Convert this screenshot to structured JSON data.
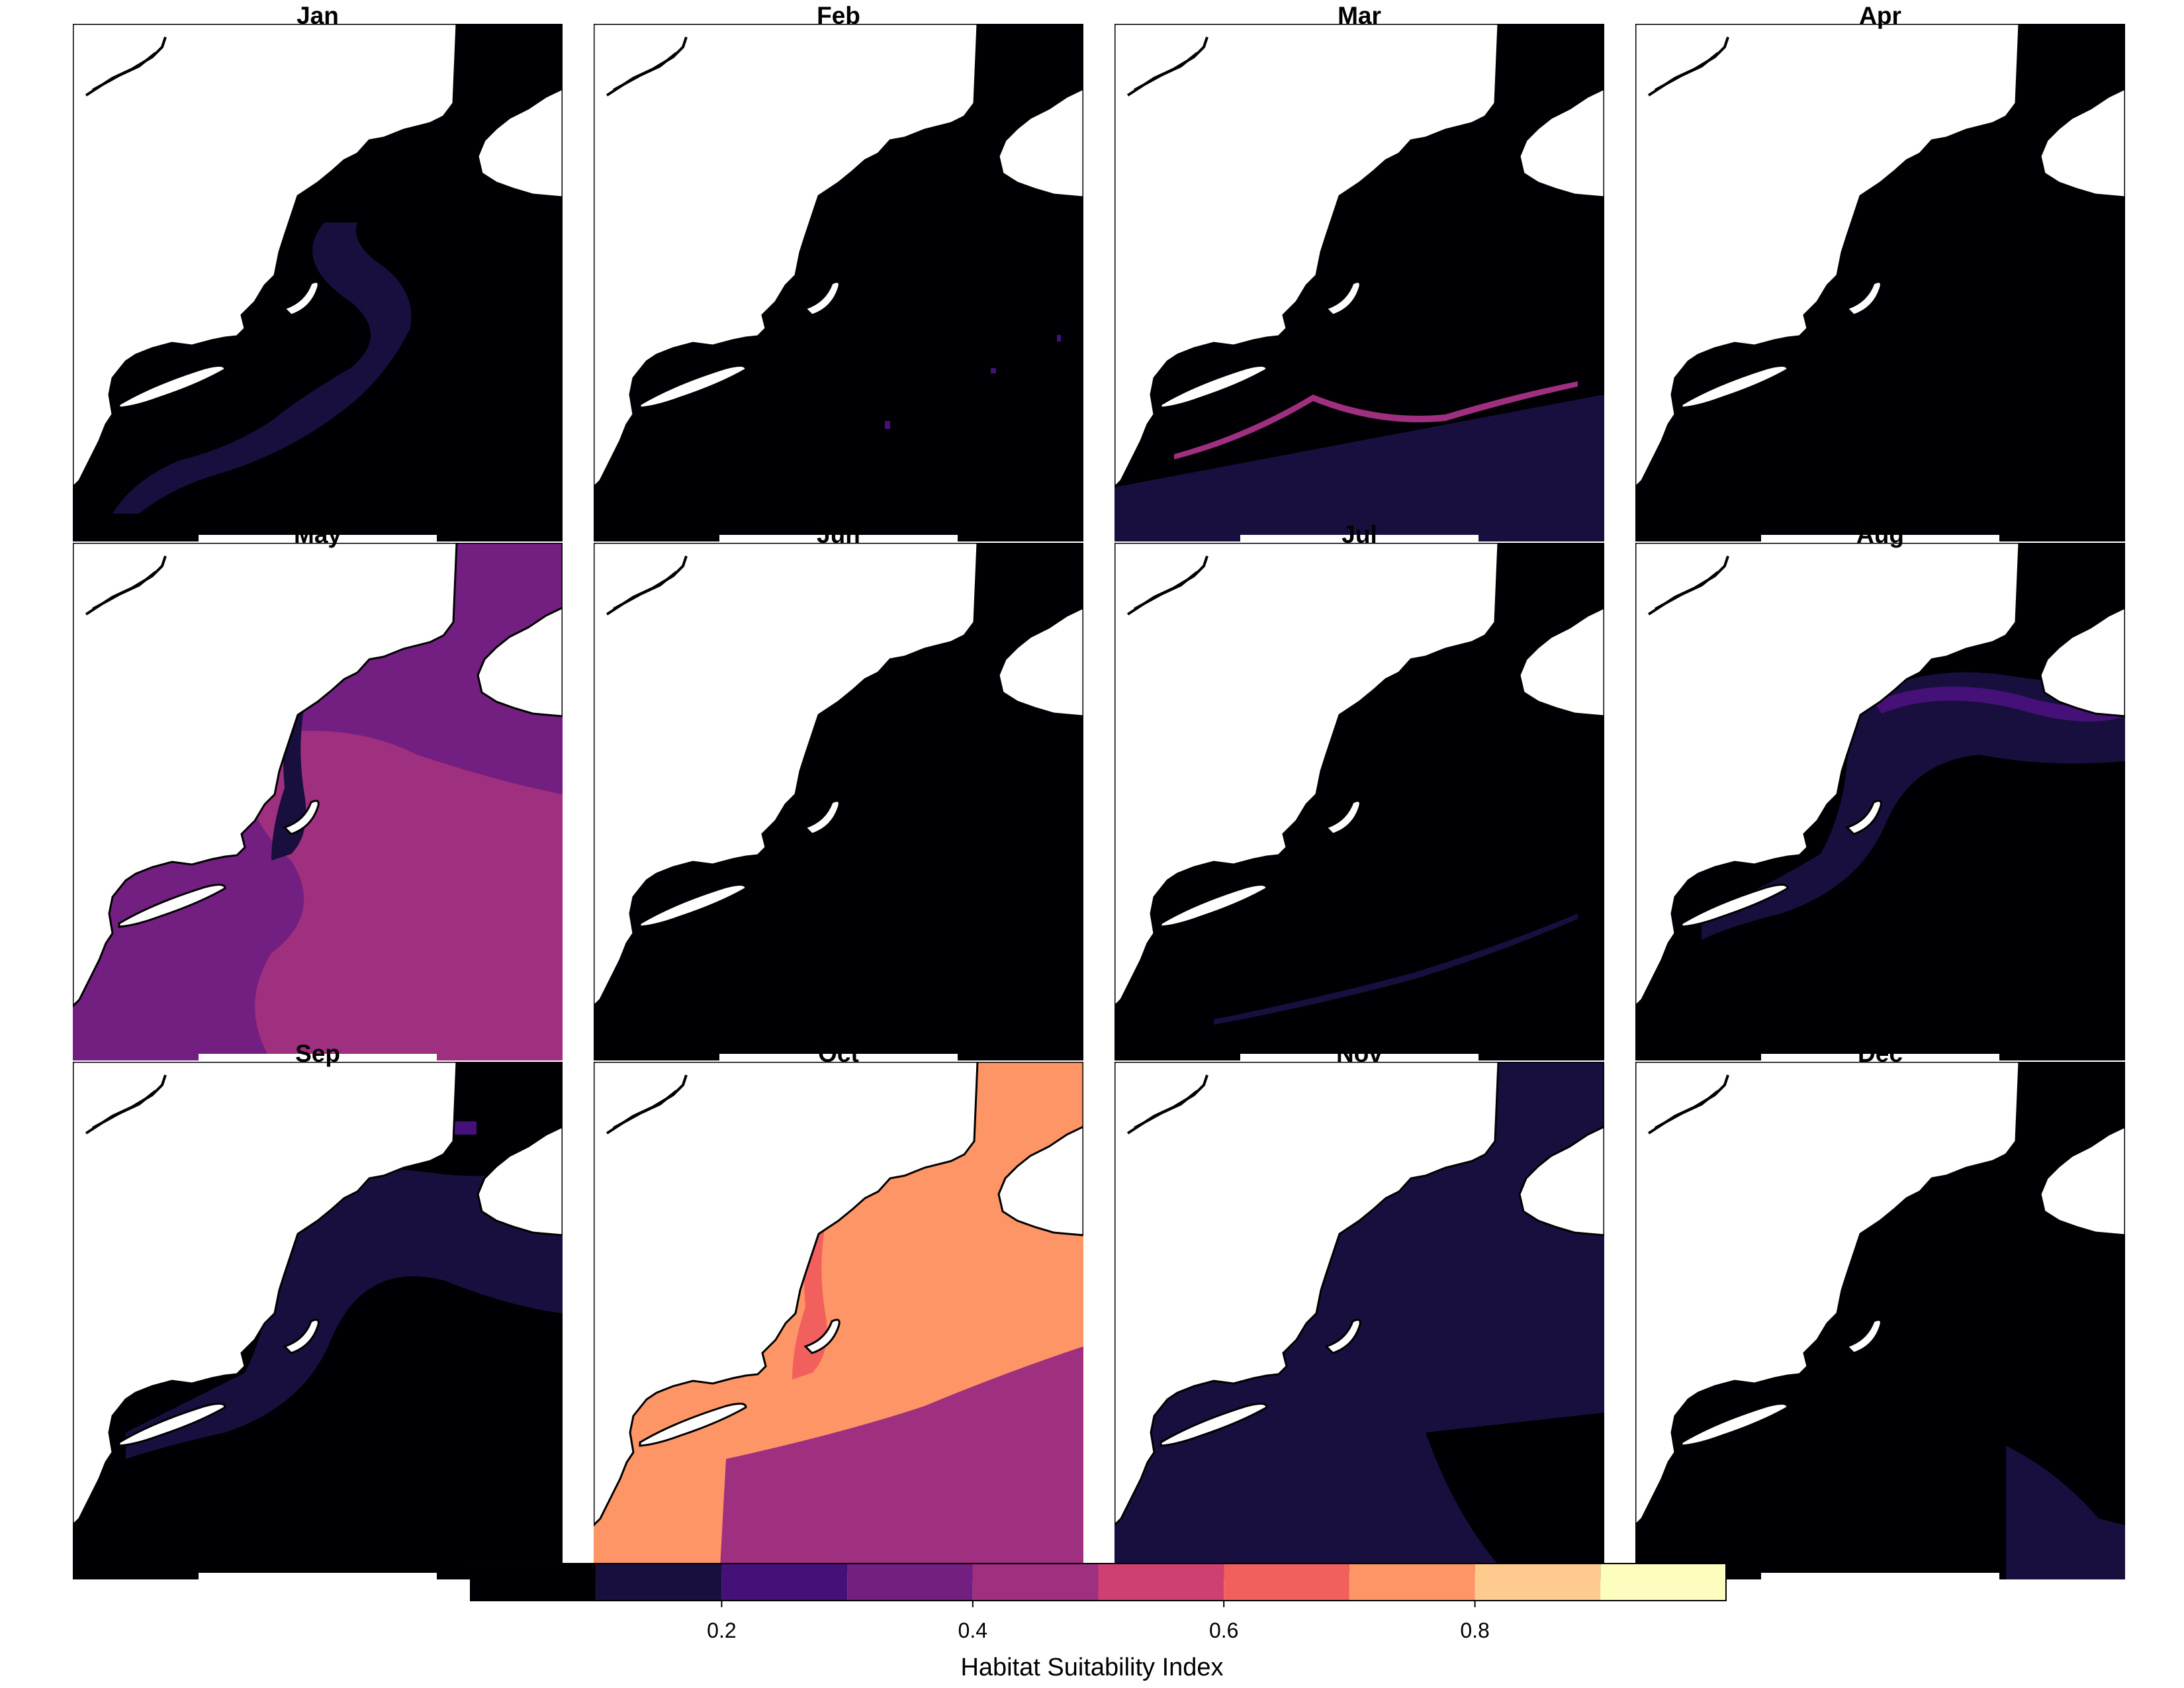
{
  "figure": {
    "legend_title": "Habitat Suitability Index",
    "legend_ticks": [
      "0.2",
      "0.4",
      "0.6",
      "0.8"
    ],
    "legend_tick_values": [
      0.2,
      0.4,
      0.6,
      0.8
    ],
    "legend_range": [
      0.0,
      1.0
    ],
    "color_bins": [
      {
        "min": 0.0,
        "max": 0.1,
        "color": "#000004"
      },
      {
        "min": 0.1,
        "max": 0.2,
        "color": "#180f3e"
      },
      {
        "min": 0.2,
        "max": 0.3,
        "color": "#451077"
      },
      {
        "min": 0.3,
        "max": 0.4,
        "color": "#721f81"
      },
      {
        "min": 0.4,
        "max": 0.5,
        "color": "#9f2f7f"
      },
      {
        "min": 0.5,
        "max": 0.6,
        "color": "#cd4071"
      },
      {
        "min": 0.6,
        "max": 0.7,
        "color": "#f1605d"
      },
      {
        "min": 0.7,
        "max": 0.8,
        "color": "#fd9567"
      },
      {
        "min": 0.8,
        "max": 0.9,
        "color": "#feca8d"
      },
      {
        "min": 0.9,
        "max": 1.0,
        "color": "#fcfdbf"
      }
    ]
  },
  "panels": [
    {
      "title": "Jan",
      "base": "#000004",
      "bands": [
        {
          "color": "#180f3e",
          "kind": "jan"
        }
      ]
    },
    {
      "title": "Feb",
      "base": "#000004",
      "bands": [
        {
          "color": "#451077",
          "kind": "specks"
        }
      ]
    },
    {
      "title": "Mar",
      "base": "#000004",
      "bands": [
        {
          "color": "#180f3e",
          "kind": "south"
        },
        {
          "color": "#9f2f7f",
          "kind": "marline"
        }
      ]
    },
    {
      "title": "Apr",
      "base": "#000004",
      "bands": []
    },
    {
      "title": "May",
      "base": "#721f81",
      "bands": [
        {
          "color": "#9f2f7f",
          "kind": "mayblotch"
        },
        {
          "color": "#180f3e",
          "kind": "coast"
        }
      ]
    },
    {
      "title": "Jun",
      "base": "#000004",
      "bands": []
    },
    {
      "title": "Jul",
      "base": "#000004",
      "bands": [
        {
          "color": "#180f3e",
          "kind": "julline"
        }
      ]
    },
    {
      "title": "Aug",
      "base": "#000004",
      "bands": [
        {
          "color": "#180f3e",
          "kind": "augwide"
        },
        {
          "color": "#451077",
          "kind": "augline"
        }
      ]
    },
    {
      "title": "Sep",
      "base": "#000004",
      "bands": [
        {
          "color": "#180f3e",
          "kind": "sepnorth"
        },
        {
          "color": "#451077",
          "kind": "coastspeck"
        }
      ]
    },
    {
      "title": "Oct",
      "base": "#fd9567",
      "bands": [
        {
          "color": "#9f2f7f",
          "kind": "octsouth"
        },
        {
          "color": "#f1605d",
          "kind": "coast"
        }
      ]
    },
    {
      "title": "Nov",
      "base": "#180f3e",
      "bands": [
        {
          "color": "#000004",
          "kind": "novse"
        }
      ]
    },
    {
      "title": "Dec",
      "base": "#000004",
      "bands": [
        {
          "color": "#180f3e",
          "kind": "decse"
        }
      ]
    }
  ]
}
